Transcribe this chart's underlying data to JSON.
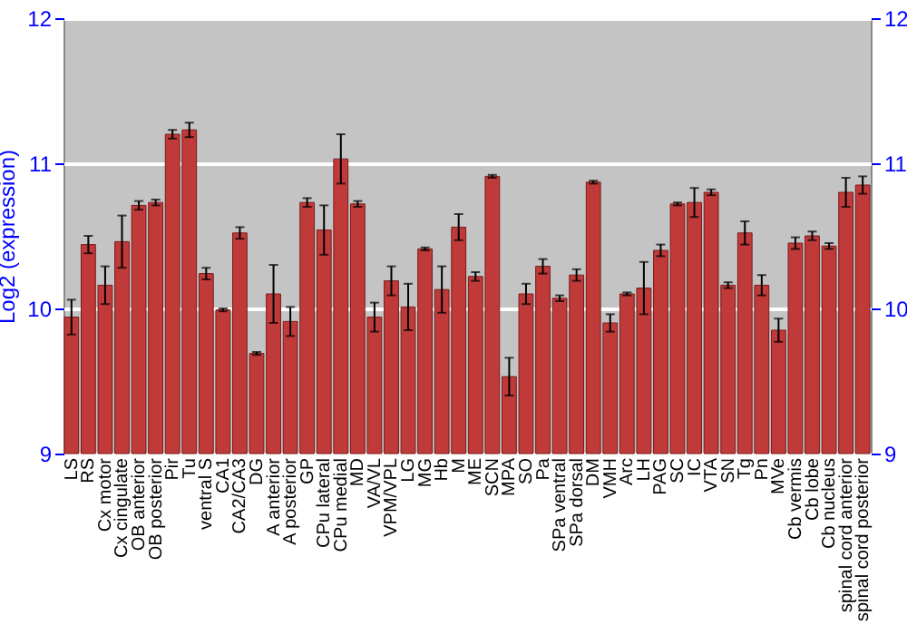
{
  "chart_data": {
    "type": "bar",
    "ylabel": "Log2 (expression)",
    "categories": [
      "LS",
      "RS",
      "Cx motor",
      "Cx cingulate",
      "OB anterior",
      "OB posterior",
      "Pir",
      "Tu",
      "ventral S",
      "CA1",
      "CA2/CA3",
      "DG",
      "A anterior",
      "A posterior",
      "GP",
      "CPu lateral",
      "CPu medial",
      "MD",
      "VA/VL",
      "VPM/VPL",
      "LG",
      "MG",
      "Hb",
      "M",
      "ME",
      "SCN",
      "MPA",
      "SO",
      "Pa",
      "SPa ventral",
      "SPa dorsal",
      "DM",
      "VMH",
      "Arc",
      "LH",
      "PAG",
      "SC",
      "IC",
      "VTA",
      "SN",
      "Tg",
      "Pn",
      "MVe",
      "Cb vermis",
      "Cb lobe",
      "Cb nucleus",
      "spinal cord anterior",
      "spinal cord posterior"
    ],
    "values": [
      9.94,
      10.44,
      10.16,
      10.46,
      10.71,
      10.73,
      11.2,
      11.23,
      10.24,
      9.99,
      10.52,
      9.69,
      10.1,
      9.91,
      10.73,
      10.54,
      11.03,
      10.72,
      9.94,
      10.19,
      10.01,
      10.41,
      10.13,
      10.56,
      10.22,
      10.91,
      9.53,
      10.1,
      10.29,
      10.07,
      10.23,
      10.87,
      9.9,
      10.1,
      10.14,
      10.4,
      10.72,
      10.73,
      10.8,
      10.16,
      10.52,
      10.16,
      9.85,
      10.45,
      10.5,
      10.43,
      10.8,
      10.85
    ],
    "errors": [
      0.12,
      0.06,
      0.13,
      0.18,
      0.03,
      0.02,
      0.03,
      0.05,
      0.04,
      0.01,
      0.04,
      0.01,
      0.2,
      0.1,
      0.03,
      0.17,
      0.17,
      0.02,
      0.1,
      0.1,
      0.16,
      0.01,
      0.16,
      0.09,
      0.03,
      0.01,
      0.13,
      0.07,
      0.05,
      0.02,
      0.04,
      0.01,
      0.06,
      0.01,
      0.18,
      0.04,
      0.01,
      0.1,
      0.02,
      0.02,
      0.08,
      0.07,
      0.08,
      0.04,
      0.03,
      0.02,
      0.1,
      0.06
    ],
    "color": "#c03a3a",
    "ylim": [
      9,
      12
    ],
    "yticks": [
      9,
      10,
      11,
      12
    ],
    "y2lim": [
      9,
      12
    ],
    "y2ticks": [
      9,
      10,
      11,
      12
    ],
    "grid": "y"
  }
}
